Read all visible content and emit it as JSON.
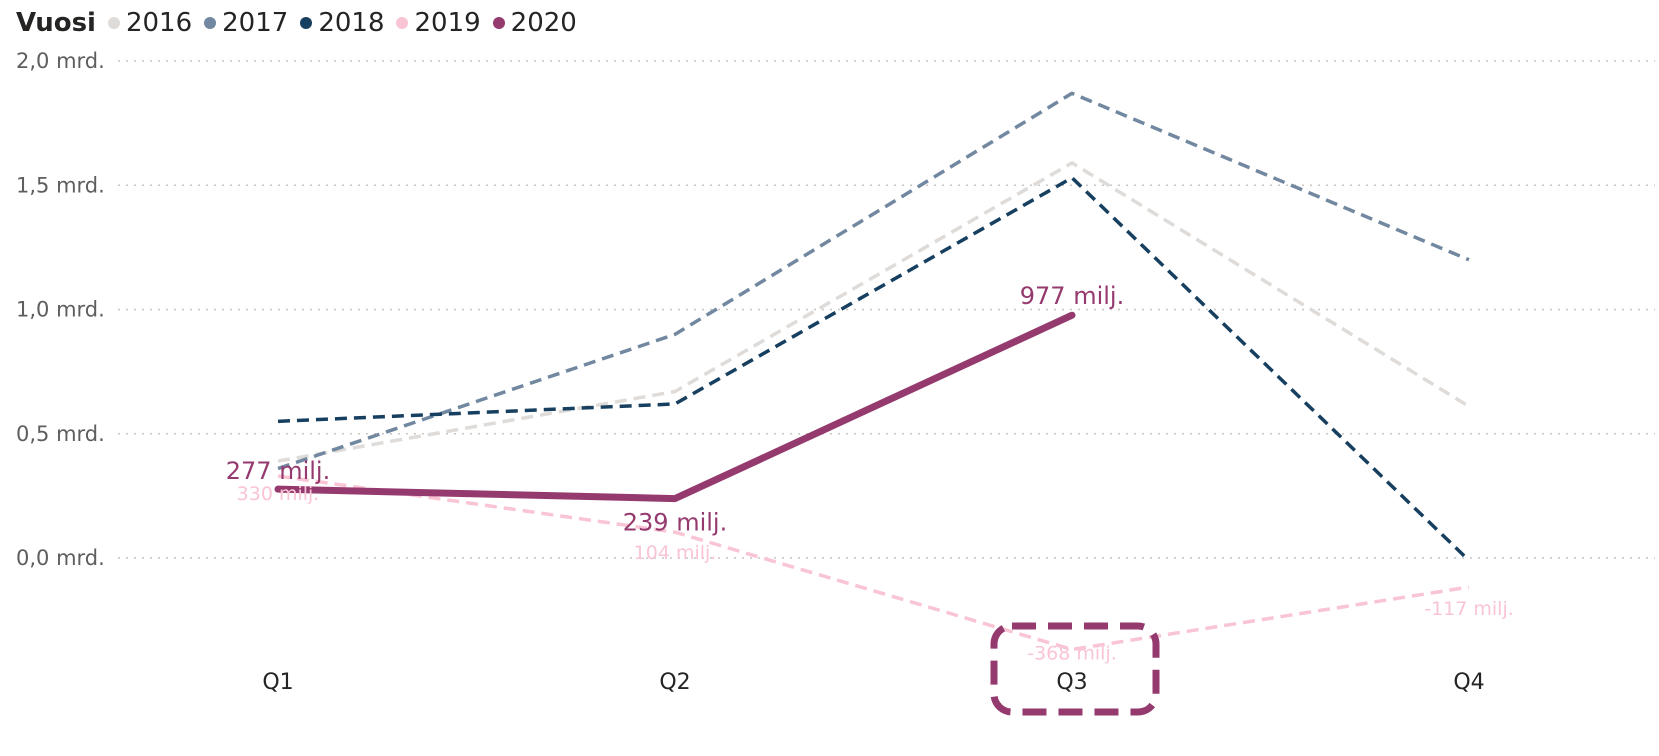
{
  "legend": {
    "title": "Vuosi"
  },
  "chart_data": {
    "type": "line",
    "categories": [
      "Q1",
      "Q2",
      "Q3",
      "Q4"
    ],
    "ylim": [
      -0.55,
      2.0
    ],
    "yticks": [
      {
        "value": 2.0,
        "label": "2,0 mrd."
      },
      {
        "value": 1.5,
        "label": "1,5 mrd."
      },
      {
        "value": 1.0,
        "label": "1,0 mrd."
      },
      {
        "value": 0.5,
        "label": "0,5 mrd."
      },
      {
        "value": 0.0,
        "label": "0,0 mrd."
      }
    ],
    "grid": true,
    "legend_position": "top-left",
    "series": [
      {
        "name": "2016",
        "color": "#dedbd8",
        "style": "dashed",
        "values": [
          0.39,
          0.67,
          1.59,
          0.61
        ]
      },
      {
        "name": "2017",
        "color": "#7188a0",
        "style": "dashed",
        "values": [
          0.36,
          0.9,
          1.87,
          1.2
        ]
      },
      {
        "name": "2018",
        "color": "#173f5f",
        "style": "dashed",
        "values": [
          0.55,
          0.62,
          1.53,
          -0.01
        ]
      },
      {
        "name": "2019",
        "color": "#f9c4d4",
        "style": "dashed",
        "values": [
          0.33,
          0.104,
          -0.368,
          -0.117
        ],
        "labels": [
          "330 milj.",
          "104 milj.",
          "-368 milj.",
          "-117 milj."
        ]
      },
      {
        "name": "2020",
        "color": "#953a6f",
        "style": "solid",
        "values": [
          0.277,
          0.239,
          0.977,
          null
        ],
        "labels": [
          "277 milj.",
          "239 milj.",
          "977 milj.",
          null
        ]
      }
    ],
    "highlight": {
      "category": "Q3",
      "color": "#953a6f"
    }
  }
}
